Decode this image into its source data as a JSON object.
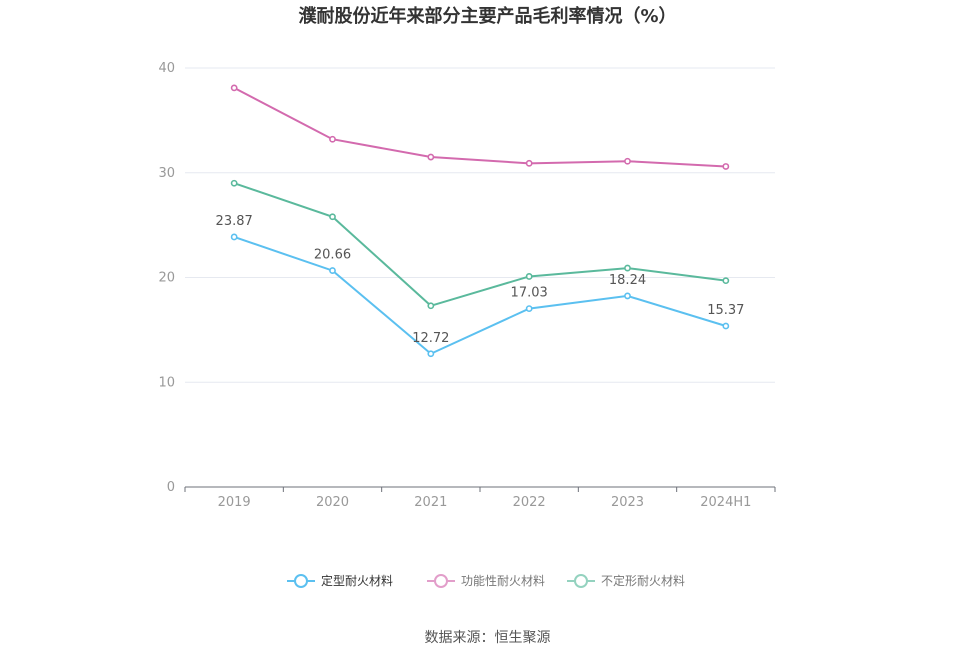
{
  "chart_data": {
    "type": "line",
    "title": "濮耐股份近年来部分主要产品毛利率情况（%）",
    "categories": [
      "2019",
      "2020",
      "2021",
      "2022",
      "2023",
      "2024H1"
    ],
    "ylim": [
      0,
      40
    ],
    "yticks": [
      0,
      10,
      20,
      30,
      40
    ],
    "grid": true,
    "legend_position": "bottom-center",
    "series": [
      {
        "name": "定型耐火材料",
        "color": "#5bc0f0",
        "values": [
          23.87,
          20.66,
          12.72,
          17.03,
          18.24,
          15.37
        ],
        "labels": [
          "23.87",
          "20.66",
          "12.72",
          "17.03",
          "18.24",
          "15.37"
        ]
      },
      {
        "name": "功能性耐火材料",
        "color": "#d36aae",
        "values": [
          38.1,
          33.2,
          31.5,
          30.9,
          31.1,
          30.6
        ]
      },
      {
        "name": "不定形耐火材料",
        "color": "#5ab99c",
        "values": [
          29.0,
          25.8,
          17.3,
          20.1,
          20.9,
          19.7
        ]
      }
    ]
  },
  "source": "数据来源：恒生聚源"
}
